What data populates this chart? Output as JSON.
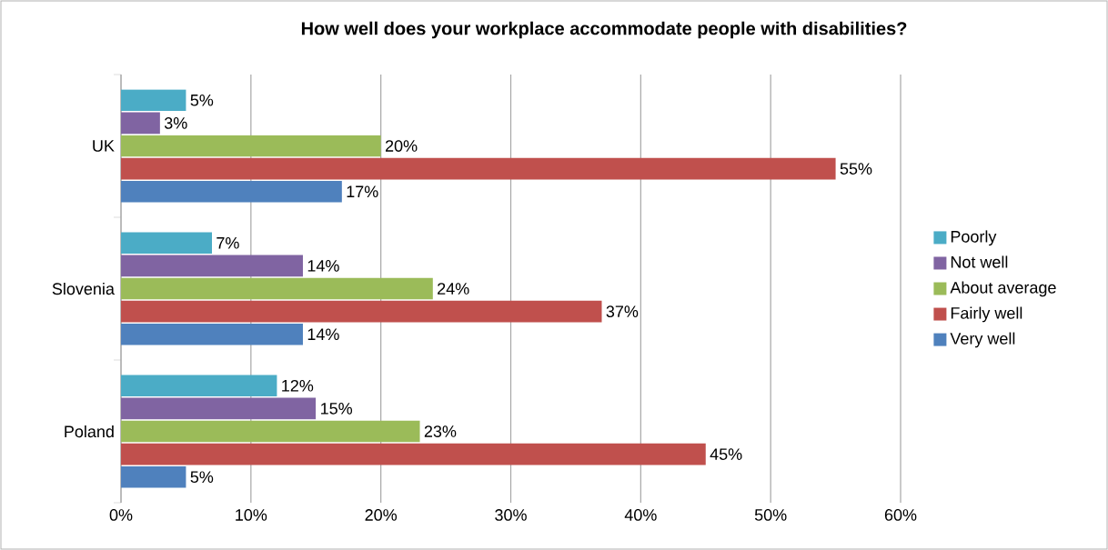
{
  "chart_data": {
    "type": "bar",
    "orientation": "horizontal",
    "title": "How well does your workplace accommodate people with disabilities?",
    "categories": [
      "UK",
      "Slovenia",
      "Poland"
    ],
    "series": [
      {
        "name": "Poorly",
        "color": "#4bacc6",
        "values": [
          5,
          7,
          12
        ],
        "value_labels": [
          "5%",
          "7%",
          "12%"
        ]
      },
      {
        "name": "Not well",
        "color": "#8064a2",
        "values": [
          3,
          14,
          15
        ],
        "value_labels": [
          "3%",
          "14%",
          "15%"
        ]
      },
      {
        "name": "About average",
        "color": "#9bbb59",
        "values": [
          20,
          24,
          23
        ],
        "value_labels": [
          "20%",
          "24%",
          "23%"
        ]
      },
      {
        "name": "Fairly well",
        "color": "#c0504d",
        "values": [
          55,
          37,
          45
        ],
        "value_labels": [
          "55%",
          "37%",
          "45%"
        ]
      },
      {
        "name": "Very well",
        "color": "#4f81bd",
        "values": [
          17,
          14,
          5
        ],
        "value_labels": [
          "17%",
          "14%",
          "5%"
        ]
      }
    ],
    "xlim": [
      0,
      60
    ],
    "xticks": [
      {
        "value": 0,
        "label": "0%"
      },
      {
        "value": 10,
        "label": "10%"
      },
      {
        "value": 20,
        "label": "20%"
      },
      {
        "value": 30,
        "label": "30%"
      },
      {
        "value": 40,
        "label": "40%"
      },
      {
        "value": 50,
        "label": "50%"
      },
      {
        "value": 60,
        "label": "60%"
      }
    ],
    "grid": "x",
    "legend": "right"
  }
}
